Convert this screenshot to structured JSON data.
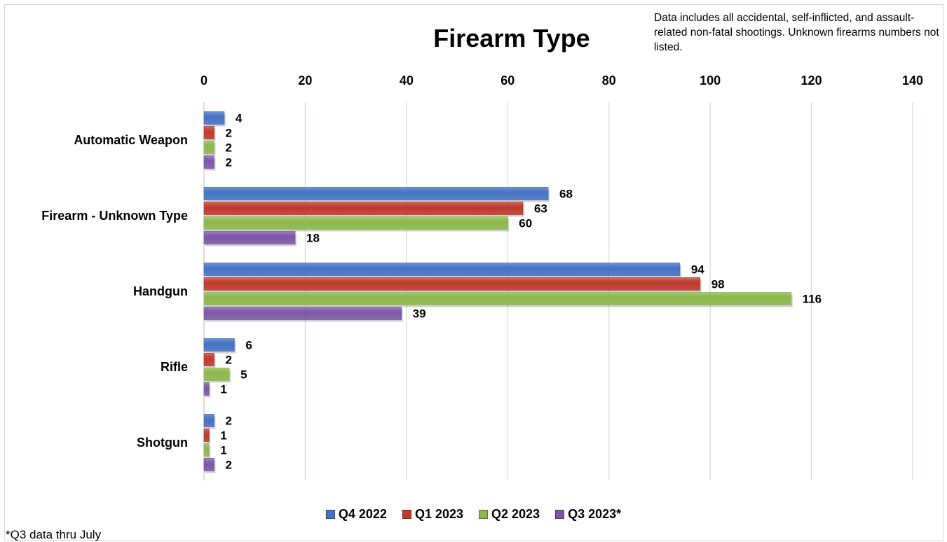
{
  "colors": {
    "Q4 2022": "#4472c4",
    "Q1 2023": "#c0392b",
    "Q2 2023": "#8cb84a",
    "Q3 2023*": "#7b57a7",
    "grid": "#d0dbe6"
  },
  "note": "Data includes all accidental, self-inflicted, and assault-related non-fatal shootings. Unknown firearms numbers not listed.",
  "footnote": "*Q3 data thru July",
  "chart_data": {
    "type": "bar",
    "orientation": "horizontal",
    "title": "Firearm Type",
    "categories": [
      "Automatic Weapon",
      "Firearm - Unknown Type",
      "Handgun",
      "Rifle",
      "Shotgun"
    ],
    "series": [
      {
        "name": "Q4 2022",
        "values": [
          4,
          68,
          94,
          6,
          2
        ]
      },
      {
        "name": "Q1 2023",
        "values": [
          2,
          63,
          98,
          2,
          1
        ]
      },
      {
        "name": "Q2 2023",
        "values": [
          2,
          60,
          116,
          5,
          1
        ]
      },
      {
        "name": "Q3 2023*",
        "values": [
          2,
          18,
          39,
          1,
          2
        ]
      }
    ],
    "xlim": [
      0,
      140
    ],
    "x_ticks": [
      0,
      20,
      40,
      60,
      80,
      100,
      120,
      140
    ],
    "x_axis_position": "top",
    "grid": true,
    "legend": "bottom",
    "xlabel": "",
    "ylabel": ""
  }
}
